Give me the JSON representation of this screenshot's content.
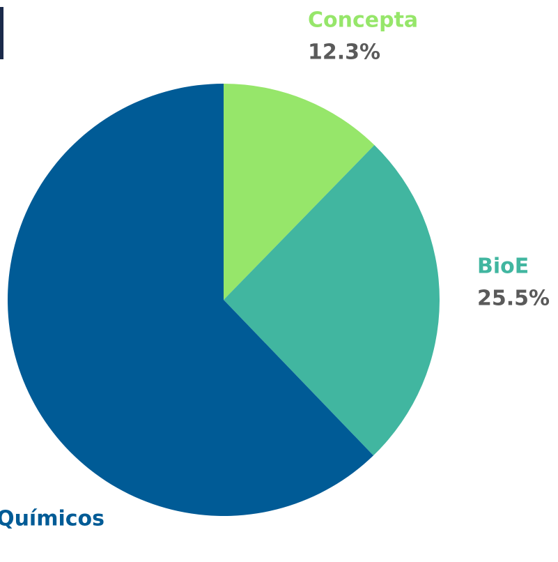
{
  "chart_data": {
    "type": "pie",
    "categories": [
      "Concepta",
      "BioE",
      "Químicos"
    ],
    "values": [
      12.3,
      25.5,
      62.2
    ],
    "value_labels": [
      "12.3%",
      "25.5%",
      null
    ],
    "colors": [
      "#96e66a",
      "#41b6a0",
      "#005b96"
    ]
  }
}
